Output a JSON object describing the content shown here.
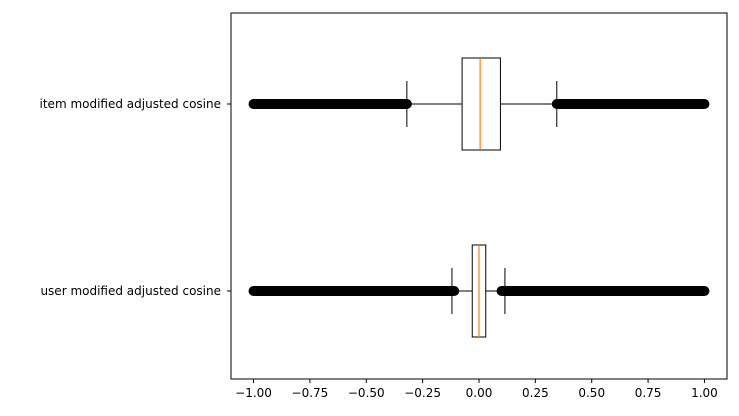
{
  "chart_data": {
    "type": "boxplot",
    "orientation": "horizontal",
    "title": "",
    "xlabel": "",
    "ylabel": "",
    "xlim": [
      -1.1,
      1.1
    ],
    "x_ticks": [
      -1.0,
      -0.75,
      -0.5,
      -0.25,
      0.0,
      0.25,
      0.5,
      0.75,
      1.0
    ],
    "x_tick_labels": [
      "−1.00",
      "−0.75",
      "−0.50",
      "−0.25",
      "0.00",
      "0.25",
      "0.50",
      "0.75",
      "1.00"
    ],
    "grid": false,
    "series": [
      {
        "category": "item modified adjusted cosine",
        "whisker_low": -0.32,
        "q1": -0.075,
        "median": 0.005,
        "q3": 0.095,
        "whisker_high": 0.345,
        "outliers_low": [
          -1.0,
          -0.32
        ],
        "outliers_high": [
          0.345,
          1.0
        ]
      },
      {
        "category": "user modified adjusted cosine",
        "whisker_low": -0.12,
        "q1": -0.03,
        "median": 0.0,
        "q3": 0.03,
        "whisker_high": 0.115,
        "outliers_low": [
          -1.0,
          -0.11
        ],
        "outliers_high": [
          0.1,
          1.0
        ]
      }
    ],
    "colors": {
      "box": "#000000",
      "median": "#ff7f0e",
      "outlier": "#000000"
    }
  }
}
